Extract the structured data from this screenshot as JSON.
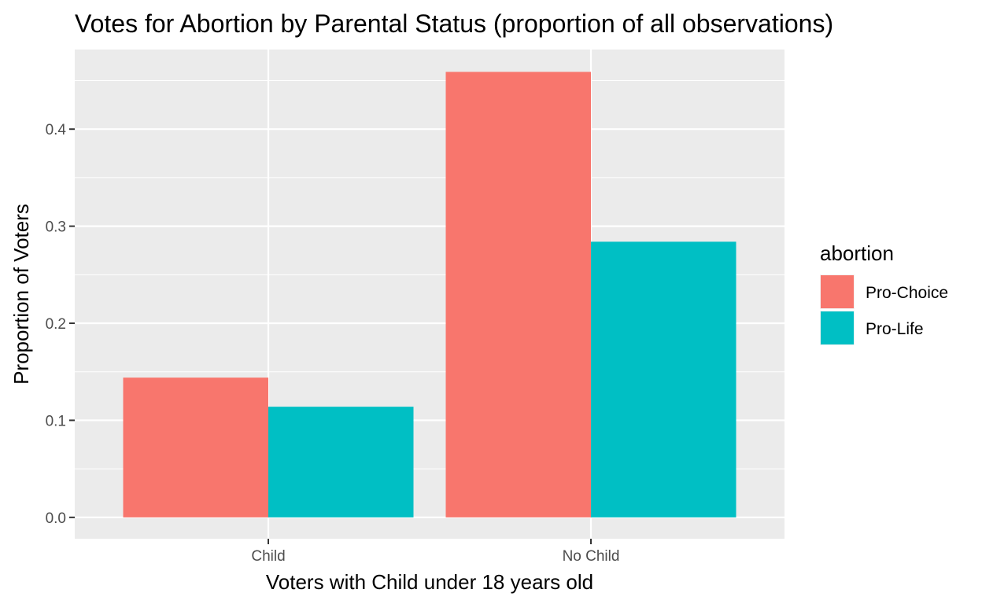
{
  "chart_data": {
    "type": "bar",
    "title": "Votes for Abortion by Parental Status (proportion of all observations)",
    "xlabel": "Voters with Child under 18 years old",
    "ylabel": "Proportion of Voters",
    "categories": [
      "Child",
      "No Child"
    ],
    "series": [
      {
        "name": "Pro-Choice",
        "color": "#F8766D",
        "values": [
          0.144,
          0.459
        ]
      },
      {
        "name": "Pro-Life",
        "color": "#00BFC4",
        "values": [
          0.114,
          0.284
        ]
      }
    ],
    "ylim": [
      -0.022,
      0.482
    ],
    "yticks": [
      0.0,
      0.1,
      0.2,
      0.3,
      0.4
    ],
    "ytick_labels": [
      "0.0",
      "0.1",
      "0.2",
      "0.3",
      "0.4"
    ],
    "legend": {
      "title": "abortion",
      "position": "right"
    },
    "grid": true,
    "panel_color": "#EBEBEB"
  }
}
